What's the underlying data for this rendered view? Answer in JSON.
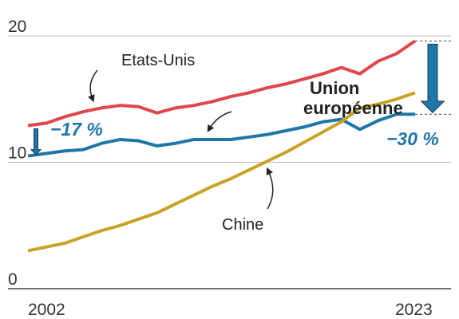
{
  "chart_data": {
    "type": "line",
    "x": [
      2002,
      2003,
      2004,
      2005,
      2006,
      2007,
      2008,
      2009,
      2010,
      2011,
      2012,
      2013,
      2014,
      2015,
      2016,
      2017,
      2018,
      2019,
      2020,
      2021,
      2022,
      2023
    ],
    "series": [
      {
        "name": "Etats-Unis",
        "color": "#e0474c",
        "values": [
          12.9,
          13.1,
          13.6,
          14.0,
          14.3,
          14.5,
          14.4,
          13.9,
          14.3,
          14.5,
          14.8,
          15.2,
          15.5,
          15.9,
          16.2,
          16.6,
          17.0,
          17.5,
          17.0,
          18.0,
          18.6,
          19.6
        ]
      },
      {
        "name": "Union européenne",
        "color": "#1f77a8",
        "values": [
          10.5,
          10.7,
          10.9,
          11.0,
          11.5,
          11.8,
          11.7,
          11.3,
          11.5,
          11.8,
          11.8,
          11.8,
          12.0,
          12.2,
          12.5,
          12.8,
          13.2,
          13.4,
          12.6,
          13.3,
          13.8,
          13.8
        ]
      },
      {
        "name": "Chine",
        "color": "#c9a227",
        "values": [
          3.0,
          3.3,
          3.6,
          4.1,
          4.6,
          5.0,
          5.5,
          6.0,
          6.7,
          7.4,
          8.1,
          8.7,
          9.4,
          10.1,
          10.8,
          11.6,
          12.4,
          13.2,
          14.3,
          14.6,
          15.0,
          15.5
        ]
      }
    ],
    "annotations": [
      "−17 %",
      "−30 %"
    ],
    "xlim": [
      2002,
      2023
    ],
    "xticks": [
      2002,
      2023
    ],
    "ylim": [
      0,
      20
    ],
    "yticks": [
      0,
      10,
      20
    ],
    "grid": true
  }
}
